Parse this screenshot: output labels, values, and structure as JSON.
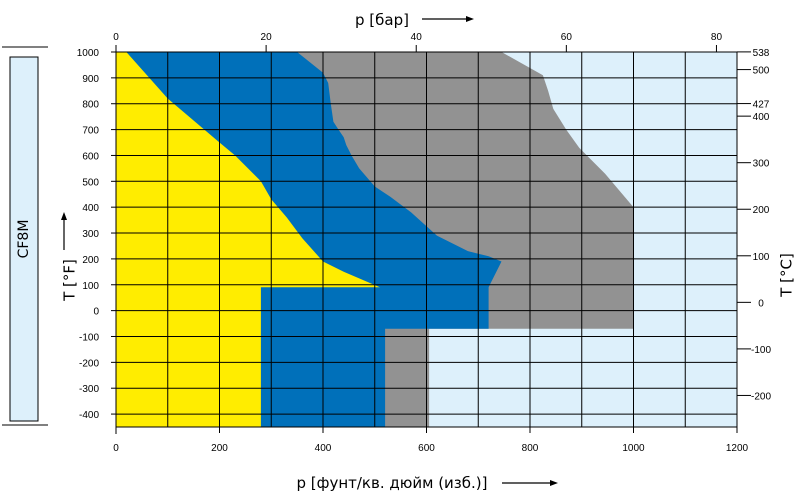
{
  "chart_data": {
    "type": "area",
    "material": "CF8M",
    "x_bottom": {
      "label": "p [фунт/кв. дюйм (изб.)]",
      "unit": "psig",
      "range": [
        0,
        1200
      ],
      "ticks": [
        0,
        200,
        400,
        600,
        800,
        1000,
        1200
      ]
    },
    "x_top": {
      "label": "p [бар]",
      "unit": "bar",
      "ticks": [
        0,
        20,
        40,
        60,
        80
      ]
    },
    "y_left": {
      "label": "T [°F]",
      "unit": "F",
      "range": [
        -450,
        1000
      ],
      "ticks": [
        1000,
        900,
        800,
        700,
        600,
        500,
        400,
        300,
        200,
        100,
        0,
        -100,
        -200,
        -300,
        -400
      ]
    },
    "y_right": {
      "label": "T [°C]",
      "unit": "C",
      "ticks": [
        538,
        500,
        427,
        400,
        300,
        200,
        100,
        0,
        -100,
        -200
      ]
    },
    "grid": true,
    "colors": {
      "yellow": "#FFED00",
      "blue": "#0070BA",
      "gray": "#929292",
      "lightblue": "#DDF0FB",
      "material_box": "#DDF0FB"
    },
    "series": [
      {
        "color_key": "lightblue",
        "points": [
          [
            0,
            1000
          ],
          [
            1200,
            1000
          ],
          [
            1200,
            -450
          ],
          [
            0,
            -450
          ]
        ]
      },
      {
        "color_key": "gray",
        "points": [
          [
            0,
            1000
          ],
          [
            745,
            1000
          ],
          [
            825,
            910
          ],
          [
            835,
            850
          ],
          [
            845,
            780
          ],
          [
            870,
            700
          ],
          [
            895,
            630
          ],
          [
            945,
            530
          ],
          [
            1000,
            400
          ],
          [
            1000,
            -70
          ],
          [
            605,
            -70
          ],
          [
            605,
            -450
          ],
          [
            0,
            -450
          ]
        ]
      },
      {
        "color_key": "blue",
        "points": [
          [
            0,
            1000
          ],
          [
            350,
            1000
          ],
          [
            400,
            920
          ],
          [
            410,
            880
          ],
          [
            415,
            800
          ],
          [
            418,
            760
          ],
          [
            420,
            730
          ],
          [
            430,
            700
          ],
          [
            440,
            670
          ],
          [
            445,
            640
          ],
          [
            455,
            600
          ],
          [
            470,
            550
          ],
          [
            500,
            480
          ],
          [
            530,
            440
          ],
          [
            570,
            380
          ],
          [
            620,
            290
          ],
          [
            680,
            230
          ],
          [
            720,
            210
          ],
          [
            745,
            190
          ],
          [
            720,
            90
          ],
          [
            720,
            -70
          ],
          [
            520,
            -70
          ],
          [
            520,
            -450
          ],
          [
            0,
            -450
          ]
        ]
      },
      {
        "color_key": "yellow",
        "points": [
          [
            0,
            1000
          ],
          [
            20,
            1000
          ],
          [
            100,
            820
          ],
          [
            200,
            650
          ],
          [
            230,
            600
          ],
          [
            280,
            500
          ],
          [
            300,
            430
          ],
          [
            330,
            360
          ],
          [
            360,
            280
          ],
          [
            400,
            190
          ],
          [
            440,
            150
          ],
          [
            510,
            90
          ],
          [
            280,
            90
          ],
          [
            280,
            -450
          ],
          [
            0,
            -450
          ]
        ]
      }
    ]
  }
}
